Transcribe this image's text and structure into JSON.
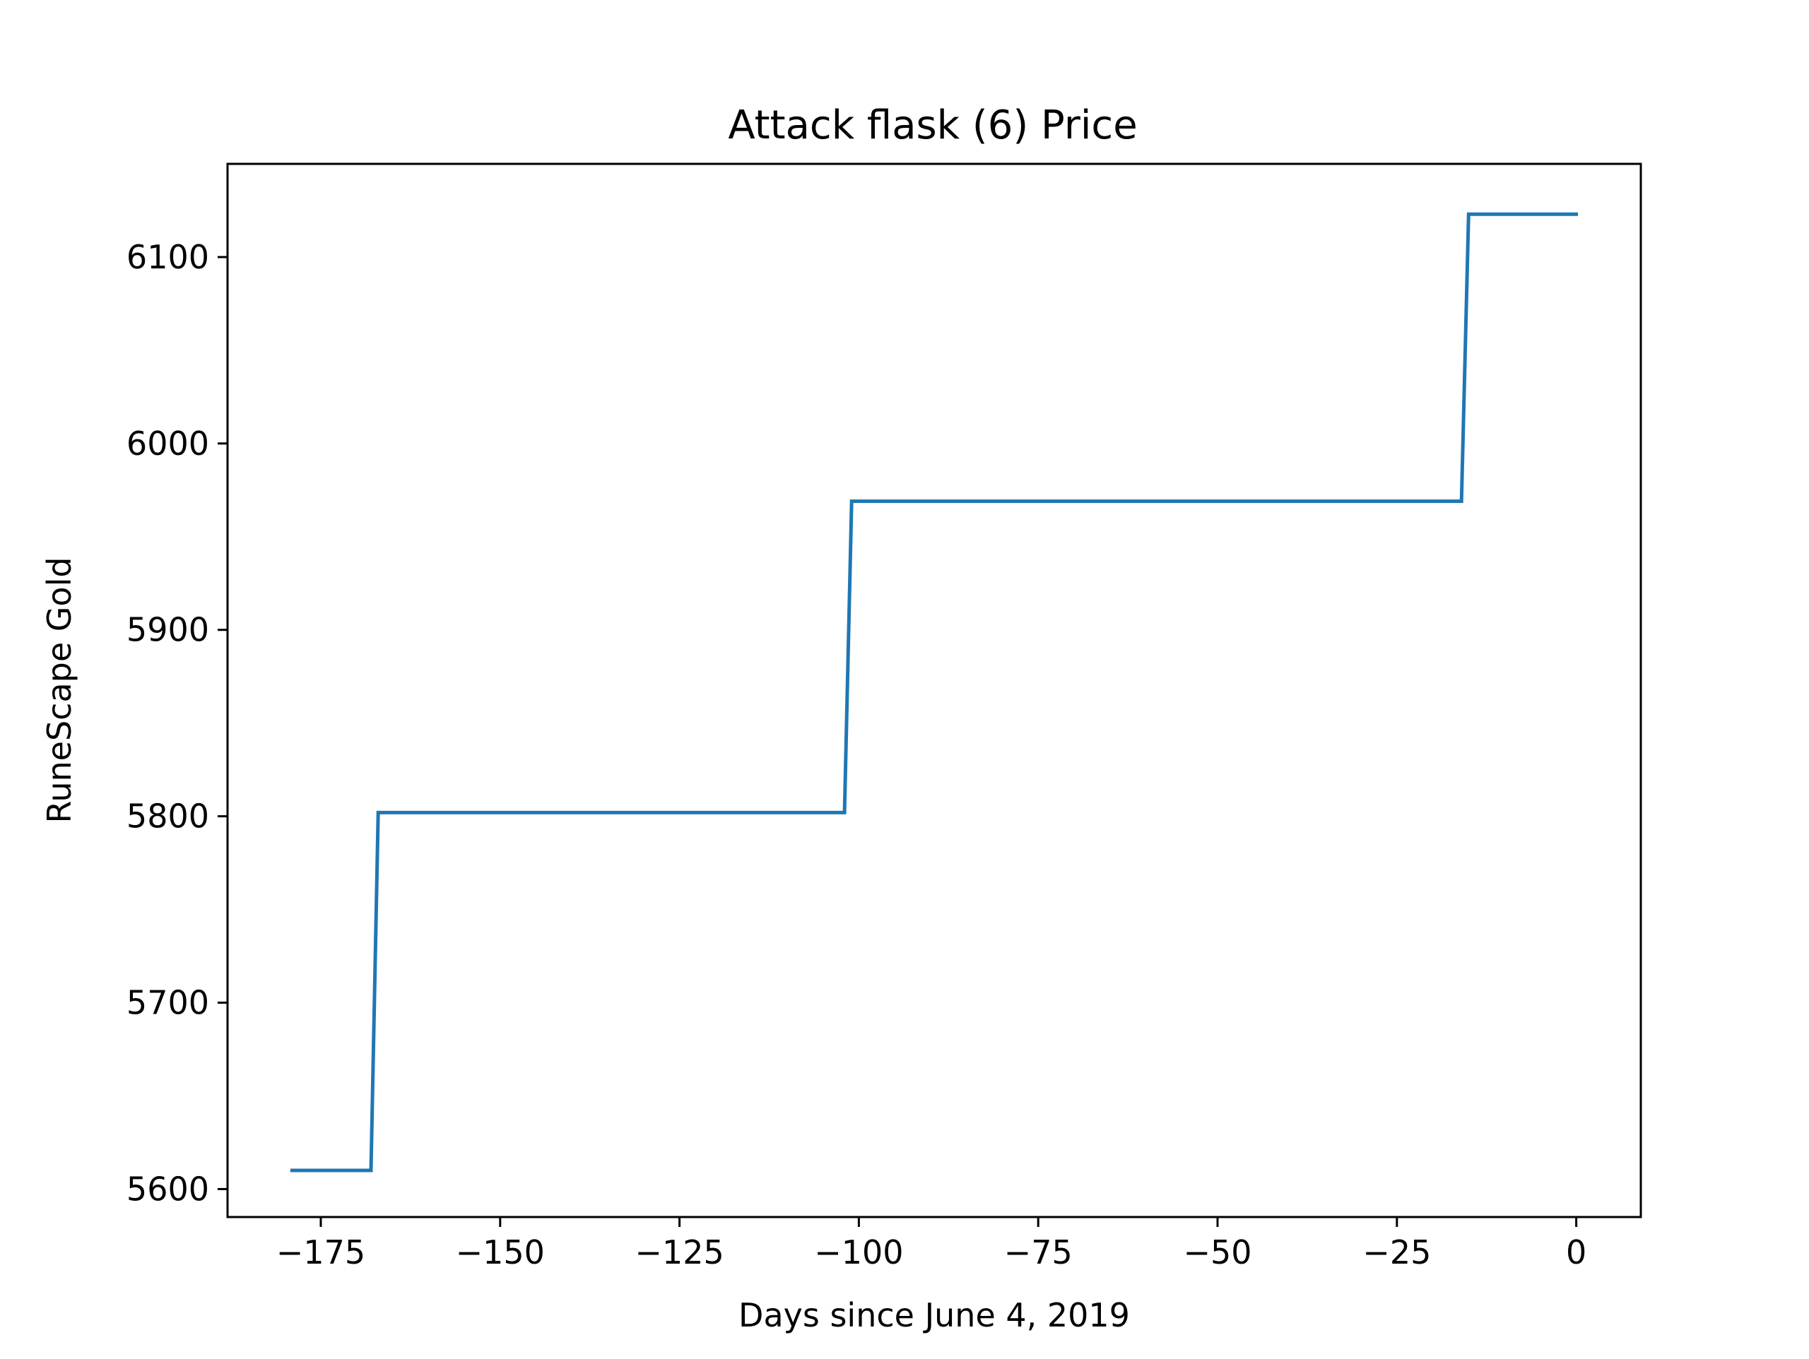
{
  "chart_data": {
    "type": "line",
    "title": "Attack flask (6) Price",
    "xlabel": "Days since June 4, 2019",
    "ylabel": "RuneScape Gold",
    "xlim": [
      -188,
      9
    ],
    "ylim": [
      5585,
      6150
    ],
    "xticks": [
      -175,
      -150,
      -125,
      -100,
      -75,
      -50,
      -25,
      0
    ],
    "xtick_labels": [
      "−175",
      "−150",
      "−125",
      "−100",
      "−75",
      "−50",
      "−25",
      "0"
    ],
    "yticks": [
      5600,
      5700,
      5800,
      5900,
      6000,
      6100
    ],
    "ytick_labels": [
      "5600",
      "5700",
      "5800",
      "5900",
      "6000",
      "6100"
    ],
    "grid": false,
    "line_color": "#1f77b4",
    "series": [
      {
        "name": "Attack flask (6)",
        "x": [
          -179,
          -168,
          -167,
          -102,
          -101,
          -16,
          -15,
          0
        ],
        "y": [
          5610,
          5610,
          5802,
          5802,
          5969,
          5969,
          6123,
          6123
        ]
      }
    ]
  }
}
